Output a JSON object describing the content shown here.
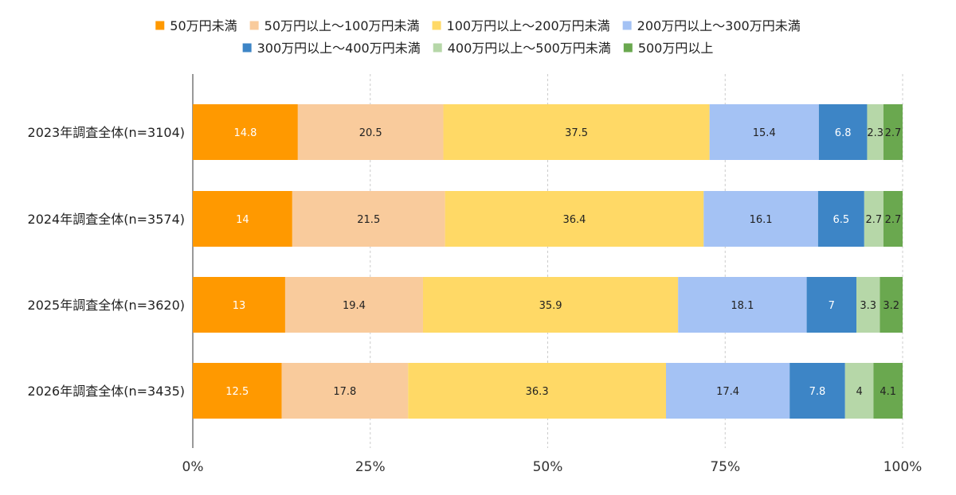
{
  "chart_data": {
    "type": "bar",
    "orientation": "horizontal",
    "stacked": true,
    "percent_stacked": true,
    "categories": [
      "2023年調査全体(n=3104)",
      "2024年調査全体(n=3574)",
      "2025年調査全体(n=3620)",
      "2026年調査全体(n=3435)"
    ],
    "series": [
      {
        "name": "50万円未満",
        "color": "#FF9900",
        "label_color": "#ffffff",
        "values": [
          14.8,
          14,
          13,
          12.5
        ]
      },
      {
        "name": "50万円以上～100万円未満",
        "color": "#F9CB9C",
        "label_color": "#222222",
        "values": [
          20.5,
          21.5,
          19.4,
          17.8
        ]
      },
      {
        "name": "100万円以上～200万円未満",
        "color": "#FFD966",
        "label_color": "#222222",
        "values": [
          37.5,
          36.4,
          35.9,
          36.3
        ]
      },
      {
        "name": "200万円以上～300万円未満",
        "color": "#A4C2F4",
        "label_color": "#222222",
        "values": [
          15.4,
          16.1,
          18.1,
          17.4
        ]
      },
      {
        "name": "300万円以上～400万円未満",
        "color": "#3D85C6",
        "label_color": "#ffffff",
        "values": [
          6.8,
          6.5,
          7,
          7.8
        ]
      },
      {
        "name": "400万円以上～500万円未満",
        "color": "#B6D7A8",
        "label_color": "#222222",
        "values": [
          2.3,
          2.7,
          3.3,
          4
        ]
      },
      {
        "name": "500万円以上",
        "color": "#6AA84F",
        "label_color": "#222222",
        "values": [
          2.7,
          2.7,
          3.2,
          4.1
        ]
      }
    ],
    "x_ticks": [
      "0%",
      "25%",
      "50%",
      "75%",
      "100%"
    ],
    "xlim": [
      0,
      100
    ],
    "legend_position": "top",
    "grid": true
  }
}
